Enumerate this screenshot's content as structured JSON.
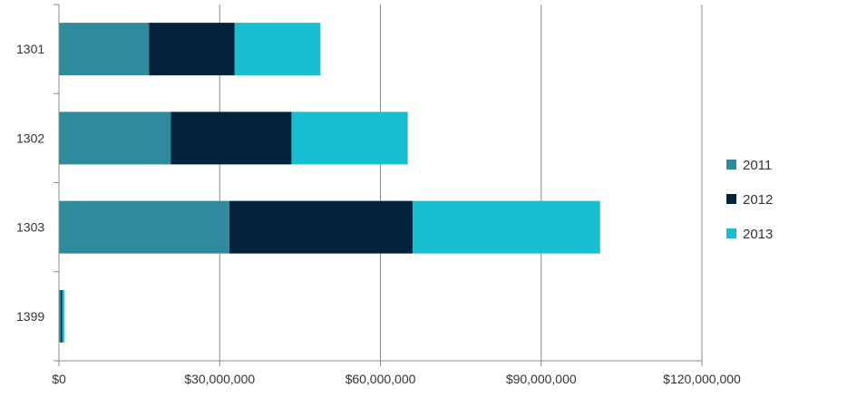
{
  "chart_data": {
    "type": "bar",
    "orientation": "horizontal",
    "stacked": true,
    "categories": [
      "1301",
      "1302",
      "1303",
      "1399"
    ],
    "series": [
      {
        "name": "2011",
        "color": "#2e8b9e",
        "values": [
          16800000,
          20900000,
          31800000,
          300000
        ]
      },
      {
        "name": "2012",
        "color": "#03233a",
        "values": [
          16000000,
          22500000,
          34200000,
          300000
        ]
      },
      {
        "name": "2013",
        "color": "#18bfd1",
        "values": [
          16000000,
          21700000,
          35000000,
          400000
        ]
      }
    ],
    "x_ticks": [
      "$0",
      "$30,000,000",
      "$60,000,000",
      "$90,000,000",
      "$120,000,000"
    ],
    "x_tick_values": [
      0,
      30000000,
      60000000,
      90000000,
      120000000
    ],
    "xlim": [
      0,
      120000000
    ],
    "grid": "vertical",
    "legend_position": "right",
    "title": "",
    "xlabel": "",
    "ylabel": ""
  }
}
